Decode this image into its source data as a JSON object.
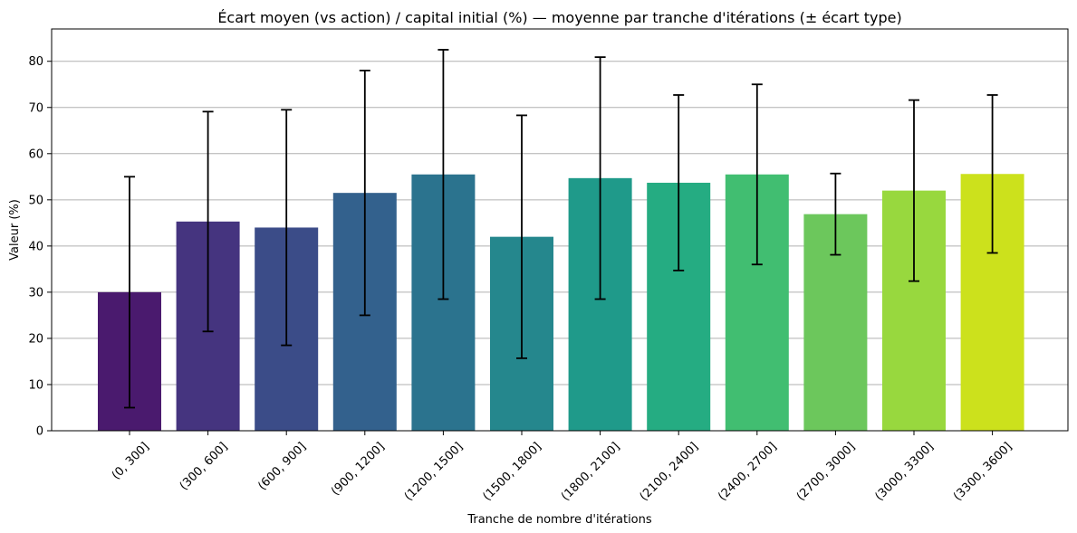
{
  "chart_data": {
    "type": "bar",
    "title": "Écart moyen (vs action) / capital initial (%) — moyenne par tranche d'itérations (± écart type)",
    "xlabel": "Tranche de nombre d'itérations",
    "ylabel": "Valeur (%)",
    "ylim": [
      0,
      87
    ],
    "yticks": [
      0,
      10,
      20,
      30,
      40,
      50,
      60,
      70,
      80
    ],
    "grid": "horizontal",
    "categories": [
      "(0, 300]",
      "(300, 600]",
      "(600, 900]",
      "(900, 1200]",
      "(1200, 1500]",
      "(1500, 1800]",
      "(1800, 2100]",
      "(2100, 2400]",
      "(2400, 2700]",
      "(2700, 3000]",
      "(3000, 3300]",
      "(3300, 3600]"
    ],
    "values": [
      30.0,
      45.3,
      44.0,
      51.5,
      55.5,
      42.0,
      54.7,
      53.7,
      55.5,
      46.9,
      52.0,
      55.6
    ],
    "errors": [
      25.0,
      23.8,
      25.5,
      26.5,
      27.0,
      26.3,
      26.2,
      19.0,
      19.5,
      8.8,
      19.6,
      17.1
    ],
    "colors": [
      "#4a1a6e",
      "#45347f",
      "#3b4c88",
      "#33618d",
      "#2b738e",
      "#25878d",
      "#1f9a8a",
      "#25ac82",
      "#41be71",
      "#6cc75c",
      "#98d83e",
      "#cce11c"
    ]
  }
}
